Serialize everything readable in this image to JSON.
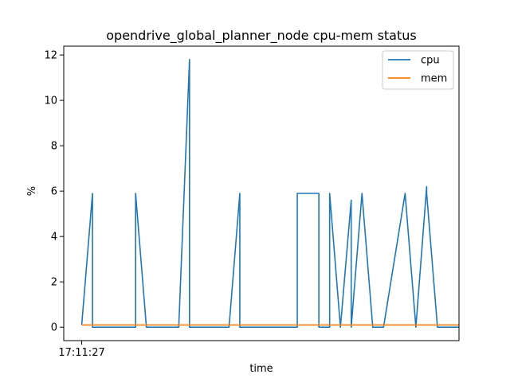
{
  "chart_data": {
    "type": "line",
    "title": "opendrive_global_planner_node cpu-mem status",
    "xlabel": "time",
    "ylabel": "%",
    "x_tick_labels": [
      "17:11:27"
    ],
    "y_ticks": [
      0,
      2,
      4,
      6,
      8,
      10,
      12
    ],
    "ylim": [
      -0.59,
      12.39
    ],
    "xlim": [
      -2.5,
      52.5
    ],
    "grid": false,
    "legend_position": "top-right",
    "series": [
      {
        "name": "cpu",
        "color": "#1f77b4",
        "x": [
          0,
          1.5,
          1.5,
          7.5,
          7.5,
          9,
          9,
          13.5,
          15,
          15,
          20.5,
          22,
          22,
          30,
          30,
          33,
          33,
          34.5,
          34.5,
          36,
          36,
          37.5,
          37.5,
          39,
          40.5,
          42,
          42,
          45,
          46.5,
          46.5,
          48,
          48,
          49.5,
          51,
          52.5
        ],
        "y": [
          0.1,
          5.9,
          0,
          0,
          5.9,
          0,
          0,
          0,
          11.8,
          0,
          0,
          5.9,
          0,
          0,
          5.9,
          5.9,
          0,
          0,
          5.9,
          0,
          0,
          5.6,
          0,
          5.9,
          0,
          0,
          0,
          5.9,
          0,
          0,
          6.2,
          5.9,
          0,
          0,
          0
        ]
      },
      {
        "name": "mem",
        "color": "#ff7f0e",
        "x": [
          0,
          52.5
        ],
        "y": [
          0.1,
          0.1
        ]
      }
    ]
  }
}
